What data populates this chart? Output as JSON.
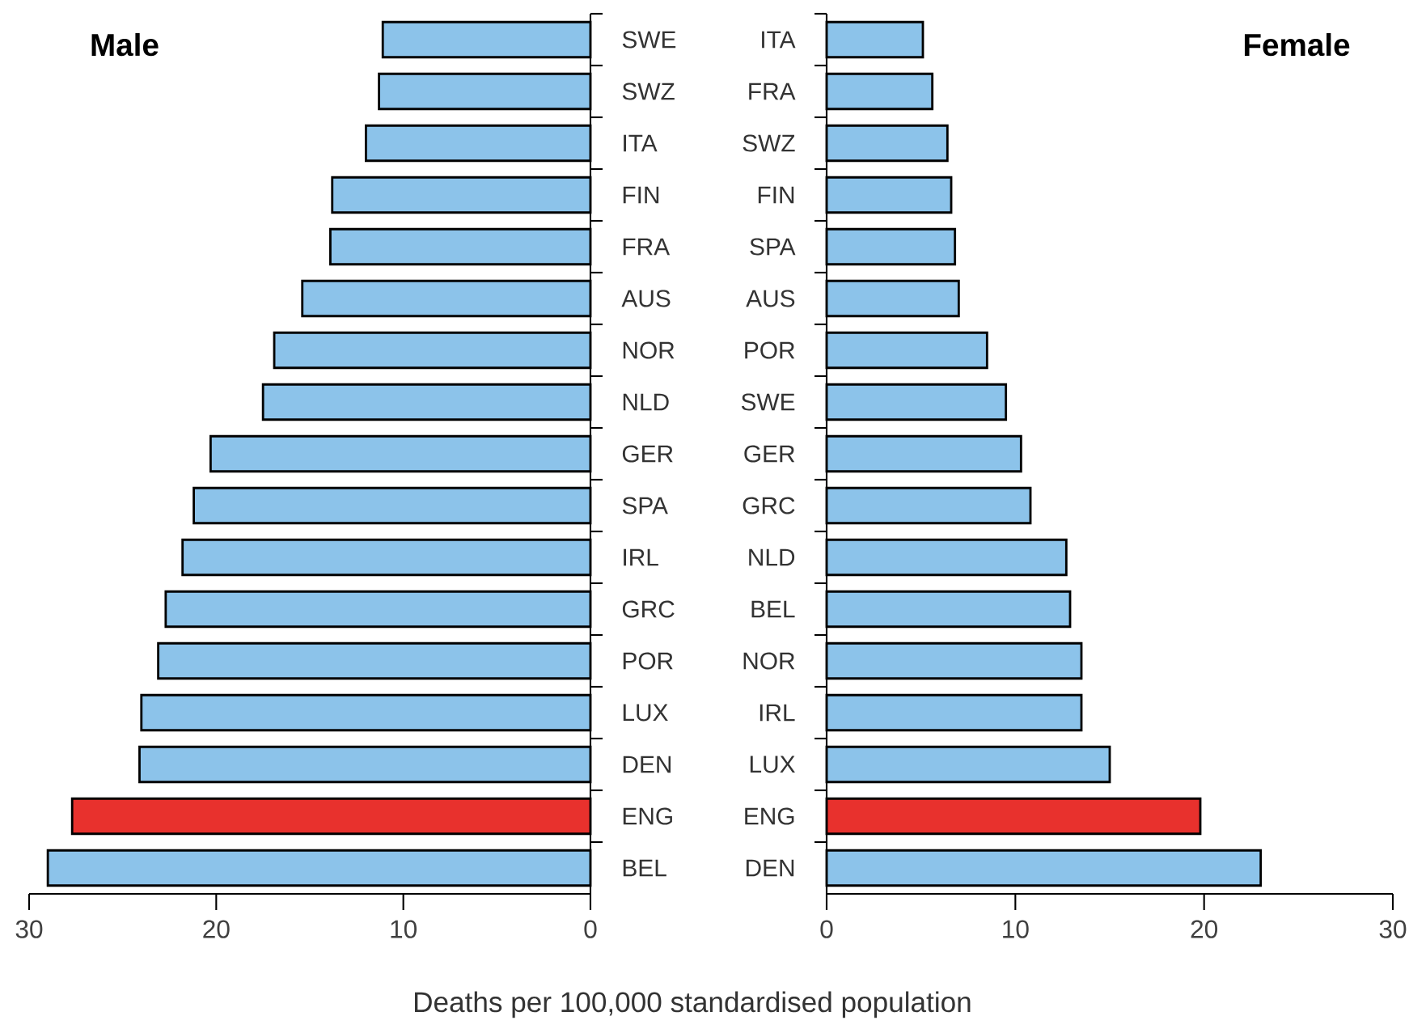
{
  "chart_data": [
    {
      "type": "bar",
      "orientation": "horizontal",
      "title": "Male",
      "xlabel": "Deaths per 100,000 standardised population",
      "categories": [
        "SWE",
        "SWZ",
        "ITA",
        "FIN",
        "FRA",
        "AUS",
        "NOR",
        "NLD",
        "GER",
        "SPA",
        "IRL",
        "GRC",
        "POR",
        "LUX",
        "DEN",
        "ENG",
        "BEL"
      ],
      "values": [
        11.1,
        11.3,
        12.0,
        13.8,
        13.9,
        15.4,
        16.9,
        17.5,
        20.3,
        21.2,
        21.8,
        22.7,
        23.1,
        24.0,
        24.1,
        27.7,
        29.0
      ],
      "colors": [
        "#8cc3ea",
        "#8cc3ea",
        "#8cc3ea",
        "#8cc3ea",
        "#8cc3ea",
        "#8cc3ea",
        "#8cc3ea",
        "#8cc3ea",
        "#8cc3ea",
        "#8cc3ea",
        "#8cc3ea",
        "#8cc3ea",
        "#8cc3ea",
        "#8cc3ea",
        "#8cc3ea",
        "#e8312d",
        "#8cc3ea"
      ],
      "xlim": [
        30,
        0
      ],
      "xticks": [
        30,
        20,
        10,
        0
      ]
    },
    {
      "type": "bar",
      "orientation": "horizontal",
      "title": "Female",
      "categories": [
        "ITA",
        "FRA",
        "SWZ",
        "FIN",
        "SPA",
        "AUS",
        "POR",
        "SWE",
        "GER",
        "GRC",
        "NLD",
        "BEL",
        "NOR",
        "IRL",
        "LUX",
        "ENG",
        "DEN"
      ],
      "values": [
        5.1,
        5.6,
        6.4,
        6.6,
        6.8,
        7.0,
        8.5,
        9.5,
        10.3,
        10.8,
        12.7,
        12.9,
        13.5,
        13.5,
        15.0,
        19.8,
        23.0
      ],
      "colors": [
        "#8cc3ea",
        "#8cc3ea",
        "#8cc3ea",
        "#8cc3ea",
        "#8cc3ea",
        "#8cc3ea",
        "#8cc3ea",
        "#8cc3ea",
        "#8cc3ea",
        "#8cc3ea",
        "#8cc3ea",
        "#8cc3ea",
        "#8cc3ea",
        "#8cc3ea",
        "#8cc3ea",
        "#e8312d",
        "#8cc3ea"
      ],
      "xlim": [
        0,
        30
      ],
      "xticks": [
        0,
        10,
        20,
        30
      ]
    }
  ]
}
